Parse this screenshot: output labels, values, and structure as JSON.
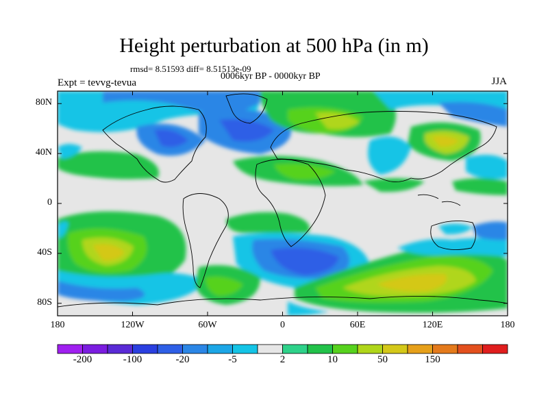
{
  "title": "Height perturbation at 500 hPa (in m)",
  "stats_line": "rmsd= 8.51593 diff= 8.51513e-09",
  "period_line": "0006kyr BP - 0000kyr BP",
  "experiment_label": "Expt = tevvg-tevua",
  "season_label": "JJA",
  "map": {
    "projection": "cylindrical-equidistant",
    "lon_range": [
      -180,
      180
    ],
    "lat_range": [
      -90,
      90
    ],
    "lat_tick_labels": [
      "80N",
      "40N",
      "0",
      "40S",
      "80S"
    ],
    "lat_tick_values": [
      80,
      40,
      0,
      -40,
      -80
    ],
    "lon_tick_labels": [
      "180",
      "120W",
      "60W",
      "0",
      "60E",
      "120E",
      "180"
    ],
    "lon_tick_values": [
      -180,
      -120,
      -60,
      0,
      60,
      120,
      180
    ]
  },
  "colorbar": {
    "colors": [
      "#a020f0",
      "#7b1de0",
      "#5a2ad6",
      "#2a3fe0",
      "#2e5fe6",
      "#2b86e6",
      "#1ca6e6",
      "#14c4e6",
      "#e6e6e6",
      "#2ed28a",
      "#22c24a",
      "#57d21e",
      "#b0d61a",
      "#d4c819",
      "#e6a01a",
      "#e47a1c",
      "#e3501e",
      "#e01e1e"
    ],
    "labels": [
      "-200",
      "-100",
      "-20",
      "-5",
      "2",
      "10",
      "50",
      "150"
    ]
  }
}
